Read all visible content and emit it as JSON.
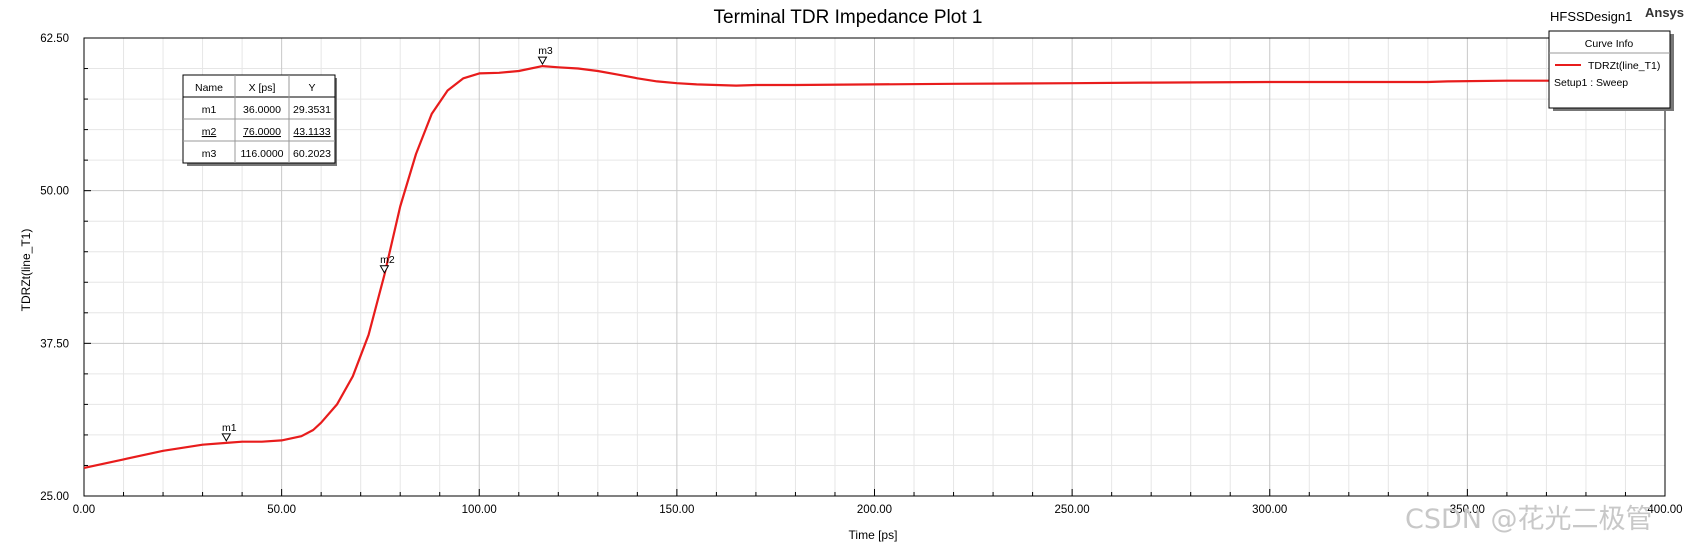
{
  "header": {
    "title": "Terminal TDR Impedance Plot 1",
    "design": "HFSSDesign1",
    "brand": "Ansys"
  },
  "colors": {
    "curve": "#e81c1c",
    "grid_major": "#c8c8c8",
    "grid_minor": "#e6e6e6"
  },
  "legend": {
    "title": "Curve Info",
    "entries": [
      {
        "label": "TDRZt(line_T1)",
        "sublabel": "Setup1 : Sweep"
      }
    ]
  },
  "marker_table": {
    "headers": [
      "Name",
      "X [ps]",
      "Y"
    ],
    "rows": [
      [
        "m1",
        "36.0000",
        "29.3531"
      ],
      [
        "m2",
        "76.0000",
        "43.1133"
      ],
      [
        "m3",
        "116.0000",
        "60.2023"
      ]
    ]
  },
  "watermark": "CSDN @花光二极管",
  "chart_data": {
    "type": "line",
    "title": "Terminal TDR Impedance Plot 1",
    "xlabel": "Time [ps]",
    "ylabel": "TDRZt(line_T1)",
    "xlim": [
      0,
      400
    ],
    "ylim": [
      25,
      62.5
    ],
    "xticks": [
      0,
      50,
      100,
      150,
      200,
      250,
      300,
      350,
      400
    ],
    "xtick_labels": [
      "0.00",
      "50.00",
      "100.00",
      "150.00",
      "200.00",
      "250.00",
      "300.00",
      "350.00",
      "400.00"
    ],
    "yticks": [
      25,
      37.5,
      50,
      62.5
    ],
    "ytick_labels": [
      "25.00",
      "37.50",
      "50.00",
      "62.50"
    ],
    "grid": true,
    "legend_position": "top-right",
    "series": [
      {
        "name": "TDRZt(line_T1)",
        "x": [
          0,
          10,
          20,
          30,
          36,
          40,
          45,
          50,
          55,
          58,
          60,
          64,
          68,
          72,
          76,
          80,
          84,
          88,
          92,
          96,
          100,
          105,
          110,
          116,
          120,
          125,
          130,
          135,
          140,
          145,
          150,
          155,
          160,
          165,
          170,
          180,
          200,
          220,
          250,
          270,
          300,
          340,
          345,
          360,
          380,
          400
        ],
        "y": [
          27.3,
          28.0,
          28.7,
          29.2,
          29.35,
          29.45,
          29.45,
          29.55,
          29.9,
          30.4,
          31.0,
          32.5,
          34.8,
          38.2,
          43.1,
          48.7,
          53.0,
          56.3,
          58.2,
          59.2,
          59.6,
          59.65,
          59.8,
          60.2,
          60.1,
          60.0,
          59.8,
          59.5,
          59.2,
          58.95,
          58.8,
          58.7,
          58.65,
          58.6,
          58.65,
          58.65,
          58.7,
          58.75,
          58.8,
          58.85,
          58.9,
          58.9,
          58.95,
          59.0,
          59.0,
          59.0
        ]
      }
    ],
    "markers": [
      {
        "name": "m1",
        "x": 36,
        "y": 29.3531
      },
      {
        "name": "m2",
        "x": 76,
        "y": 43.1133
      },
      {
        "name": "m3",
        "x": 116,
        "y": 60.2023
      }
    ]
  }
}
